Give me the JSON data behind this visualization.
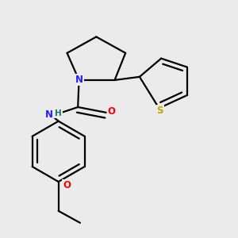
{
  "bg_color": "#ebebeb",
  "bond_color": "#000000",
  "bond_width": 1.6,
  "atom_colors": {
    "N": "#2020ff",
    "O": "#ff0000",
    "S": "#bbaa00",
    "H_color": "#207070"
  },
  "font_size": 8.5,
  "figsize": [
    3.0,
    3.0
  ],
  "dpi": 100
}
